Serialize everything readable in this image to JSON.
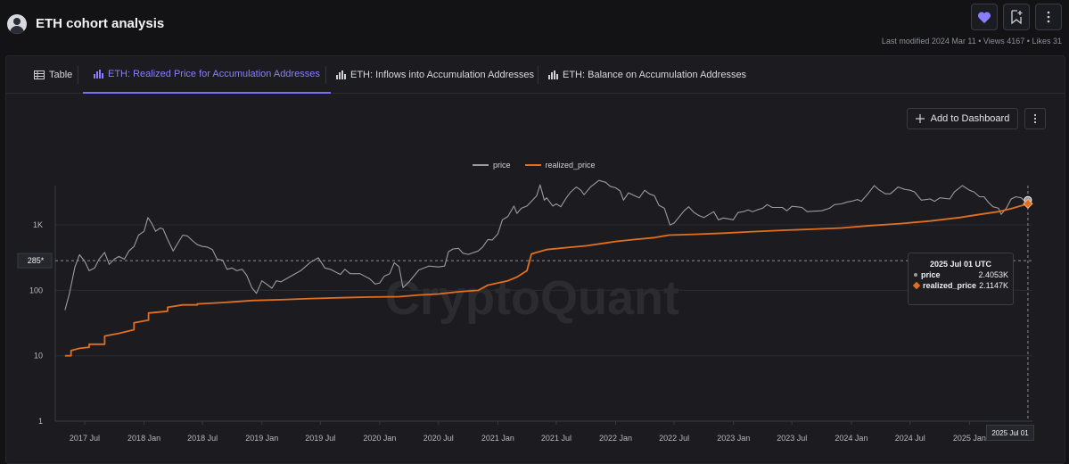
{
  "header": {
    "title": "ETH cohort analysis",
    "meta": {
      "last_modified_label": "Last modified 2024 Mar 11",
      "views_label": "Views 4167",
      "likes_label": "Likes 31",
      "separator": "•"
    }
  },
  "colors": {
    "accent": "#7a6cf5",
    "price": "#9a9aa2",
    "realized_price": "#e36e1e",
    "background": "#131316"
  },
  "tabs": [
    {
      "label": "Table",
      "icon": "table-icon",
      "active": false
    },
    {
      "label": "ETH: Realized Price for Accumulation Addresses",
      "icon": "bar-chart-icon",
      "active": true
    },
    {
      "label": "ETH: Inflows into Accumulation Addresses",
      "icon": "bar-chart-icon",
      "active": false
    },
    {
      "label": "ETH: Balance on Accumulation Addresses",
      "icon": "bar-chart-icon",
      "active": false
    }
  ],
  "toolbar": {
    "add_label": "Add to Dashboard"
  },
  "watermark": "CryptoQuant",
  "tooltip": {
    "title": "2025 Jul 01 UTC",
    "rows": [
      {
        "label": "price",
        "value": "2.4053K"
      },
      {
        "label": "realized_price",
        "value": "2.1147K"
      }
    ]
  },
  "crosshair": {
    "y_label": "285*",
    "y_value": 285,
    "x_label": "2025 Jul 01"
  },
  "chart_data": {
    "type": "line",
    "title": "",
    "xlabel": "",
    "ylabel": "",
    "y_scale": "log",
    "ylim": [
      1,
      4000
    ],
    "xlim": [
      "2017-04-01",
      "2025-07-15"
    ],
    "y_ticks": [
      {
        "value": 1,
        "label": "1"
      },
      {
        "value": 10,
        "label": "10"
      },
      {
        "value": 100,
        "label": "100"
      },
      {
        "value": 1000,
        "label": "1K"
      }
    ],
    "x_ticks": [
      {
        "date": "2017-07-01",
        "label": "2017 Jul"
      },
      {
        "date": "2018-01-01",
        "label": "2018 Jan"
      },
      {
        "date": "2018-07-01",
        "label": "2018 Jul"
      },
      {
        "date": "2019-01-01",
        "label": "2019 Jan"
      },
      {
        "date": "2019-07-01",
        "label": "2019 Jul"
      },
      {
        "date": "2020-01-01",
        "label": "2020 Jan"
      },
      {
        "date": "2020-07-01",
        "label": "2020 Jul"
      },
      {
        "date": "2021-01-01",
        "label": "2021 Jan"
      },
      {
        "date": "2021-07-01",
        "label": "2021 Jul"
      },
      {
        "date": "2022-01-01",
        "label": "2022 Jan"
      },
      {
        "date": "2022-07-01",
        "label": "2022 Jul"
      },
      {
        "date": "2023-01-01",
        "label": "2023 Jan"
      },
      {
        "date": "2023-07-01",
        "label": "2023 Jul"
      },
      {
        "date": "2024-01-01",
        "label": "2024 Jan"
      },
      {
        "date": "2024-07-01",
        "label": "2024 Jul"
      },
      {
        "date": "2025-01-01",
        "label": "2025 Jan"
      }
    ],
    "grid": true,
    "legend": "top-center",
    "series": [
      {
        "name": "price",
        "color": "#9a9aa2",
        "points": [
          [
            "2017-05-01",
            50
          ],
          [
            "2017-05-15",
            90
          ],
          [
            "2017-06-01",
            230
          ],
          [
            "2017-06-15",
            350
          ],
          [
            "2017-07-01",
            280
          ],
          [
            "2017-07-15",
            200
          ],
          [
            "2017-08-01",
            220
          ],
          [
            "2017-08-15",
            300
          ],
          [
            "2017-09-01",
            380
          ],
          [
            "2017-09-15",
            250
          ],
          [
            "2017-10-01",
            300
          ],
          [
            "2017-10-15",
            330
          ],
          [
            "2017-11-01",
            300
          ],
          [
            "2017-11-15",
            400
          ],
          [
            "2017-12-01",
            470
          ],
          [
            "2017-12-15",
            700
          ],
          [
            "2018-01-01",
            800
          ],
          [
            "2018-01-13",
            1300
          ],
          [
            "2018-01-25",
            1050
          ],
          [
            "2018-02-06",
            800
          ],
          [
            "2018-02-20",
            900
          ],
          [
            "2018-03-01",
            870
          ],
          [
            "2018-03-15",
            600
          ],
          [
            "2018-04-01",
            400
          ],
          [
            "2018-04-15",
            520
          ],
          [
            "2018-05-01",
            700
          ],
          [
            "2018-05-15",
            680
          ],
          [
            "2018-06-01",
            570
          ],
          [
            "2018-06-15",
            500
          ],
          [
            "2018-07-01",
            470
          ],
          [
            "2018-07-15",
            460
          ],
          [
            "2018-08-01",
            420
          ],
          [
            "2018-08-15",
            300
          ],
          [
            "2018-09-01",
            290
          ],
          [
            "2018-09-15",
            210
          ],
          [
            "2018-10-01",
            220
          ],
          [
            "2018-10-15",
            200
          ],
          [
            "2018-11-01",
            210
          ],
          [
            "2018-11-15",
            170
          ],
          [
            "2018-12-01",
            110
          ],
          [
            "2018-12-15",
            90
          ],
          [
            "2019-01-01",
            140
          ],
          [
            "2019-01-15",
            125
          ],
          [
            "2019-02-01",
            108
          ],
          [
            "2019-02-15",
            140
          ],
          [
            "2019-03-01",
            135
          ],
          [
            "2019-04-01",
            165
          ],
          [
            "2019-05-01",
            200
          ],
          [
            "2019-06-01",
            270
          ],
          [
            "2019-06-25",
            315
          ],
          [
            "2019-07-15",
            220
          ],
          [
            "2019-08-01",
            210
          ],
          [
            "2019-09-01",
            175
          ],
          [
            "2019-09-15",
            210
          ],
          [
            "2019-10-01",
            180
          ],
          [
            "2019-11-01",
            180
          ],
          [
            "2019-12-01",
            150
          ],
          [
            "2019-12-18",
            125
          ],
          [
            "2020-01-01",
            130
          ],
          [
            "2020-01-15",
            165
          ],
          [
            "2020-02-01",
            180
          ],
          [
            "2020-02-15",
            265
          ],
          [
            "2020-03-01",
            230
          ],
          [
            "2020-03-13",
            110
          ],
          [
            "2020-04-01",
            135
          ],
          [
            "2020-05-01",
            205
          ],
          [
            "2020-06-01",
            235
          ],
          [
            "2020-07-01",
            228
          ],
          [
            "2020-07-20",
            235
          ],
          [
            "2020-08-01",
            390
          ],
          [
            "2020-08-15",
            430
          ],
          [
            "2020-09-01",
            440
          ],
          [
            "2020-09-15",
            370
          ],
          [
            "2020-10-01",
            355
          ],
          [
            "2020-11-01",
            400
          ],
          [
            "2020-11-15",
            460
          ],
          [
            "2020-12-01",
            600
          ],
          [
            "2020-12-15",
            590
          ],
          [
            "2021-01-01",
            730
          ],
          [
            "2021-01-15",
            1200
          ],
          [
            "2021-02-01",
            1350
          ],
          [
            "2021-02-20",
            1950
          ],
          [
            "2021-03-01",
            1500
          ],
          [
            "2021-03-15",
            1800
          ],
          [
            "2021-04-01",
            1950
          ],
          [
            "2021-04-15",
            2300
          ],
          [
            "2021-05-01",
            2800
          ],
          [
            "2021-05-12",
            4100
          ],
          [
            "2021-05-25",
            2400
          ],
          [
            "2021-06-01",
            2600
          ],
          [
            "2021-06-20",
            1950
          ],
          [
            "2021-07-01",
            2100
          ],
          [
            "2021-07-15",
            1900
          ],
          [
            "2021-08-01",
            2600
          ],
          [
            "2021-08-15",
            3200
          ],
          [
            "2021-09-01",
            3800
          ],
          [
            "2021-09-15",
            3400
          ],
          [
            "2021-09-25",
            2900
          ],
          [
            "2021-10-15",
            3800
          ],
          [
            "2021-11-10",
            4800
          ],
          [
            "2021-12-01",
            4500
          ],
          [
            "2021-12-15",
            3900
          ],
          [
            "2022-01-01",
            3700
          ],
          [
            "2022-01-15",
            3300
          ],
          [
            "2022-01-25",
            2400
          ],
          [
            "2022-02-10",
            3100
          ],
          [
            "2022-03-01",
            2800
          ],
          [
            "2022-03-15",
            2600
          ],
          [
            "2022-04-01",
            3400
          ],
          [
            "2022-04-15",
            3000
          ],
          [
            "2022-05-01",
            2800
          ],
          [
            "2022-05-15",
            2000
          ],
          [
            "2022-06-01",
            1800
          ],
          [
            "2022-06-18",
            1000
          ],
          [
            "2022-07-01",
            1070
          ],
          [
            "2022-07-15",
            1300
          ],
          [
            "2022-08-01",
            1650
          ],
          [
            "2022-08-15",
            1900
          ],
          [
            "2022-09-01",
            1550
          ],
          [
            "2022-09-15",
            1400
          ],
          [
            "2022-10-01",
            1300
          ],
          [
            "2022-11-01",
            1600
          ],
          [
            "2022-11-15",
            1200
          ],
          [
            "2022-12-01",
            1280
          ],
          [
            "2022-12-31",
            1200
          ],
          [
            "2023-01-15",
            1550
          ],
          [
            "2023-02-01",
            1600
          ],
          [
            "2023-02-15",
            1700
          ],
          [
            "2023-03-01",
            1600
          ],
          [
            "2023-03-15",
            1700
          ],
          [
            "2023-04-01",
            1800
          ],
          [
            "2023-04-15",
            2050
          ],
          [
            "2023-05-01",
            1850
          ],
          [
            "2023-06-01",
            1850
          ],
          [
            "2023-06-15",
            1650
          ],
          [
            "2023-07-01",
            1930
          ],
          [
            "2023-07-15",
            1900
          ],
          [
            "2023-08-01",
            1850
          ],
          [
            "2023-08-17",
            1600
          ],
          [
            "2023-09-01",
            1620
          ],
          [
            "2023-10-01",
            1650
          ],
          [
            "2023-10-25",
            1800
          ],
          [
            "2023-11-10",
            2050
          ],
          [
            "2023-12-01",
            2100
          ],
          [
            "2023-12-20",
            2250
          ],
          [
            "2024-01-01",
            2300
          ],
          [
            "2024-01-20",
            2450
          ],
          [
            "2024-02-01",
            2300
          ],
          [
            "2024-02-20",
            2950
          ],
          [
            "2024-03-12",
            4000
          ],
          [
            "2024-03-25",
            3500
          ],
          [
            "2024-04-15",
            3000
          ],
          [
            "2024-05-01",
            3000
          ],
          [
            "2024-05-25",
            3800
          ],
          [
            "2024-06-15",
            3500
          ],
          [
            "2024-07-01",
            3400
          ],
          [
            "2024-07-15",
            3200
          ],
          [
            "2024-08-05",
            2400
          ],
          [
            "2024-09-01",
            2500
          ],
          [
            "2024-09-15",
            2300
          ],
          [
            "2024-10-01",
            2600
          ],
          [
            "2024-11-01",
            2500
          ],
          [
            "2024-11-15",
            3200
          ],
          [
            "2024-12-10",
            4000
          ],
          [
            "2025-01-01",
            3400
          ],
          [
            "2025-01-15",
            3200
          ],
          [
            "2025-02-01",
            2700
          ],
          [
            "2025-02-15",
            2700
          ],
          [
            "2025-03-01",
            2200
          ],
          [
            "2025-03-15",
            1900
          ],
          [
            "2025-04-01",
            1800
          ],
          [
            "2025-04-09",
            1450
          ],
          [
            "2025-04-25",
            1800
          ],
          [
            "2025-05-10",
            2500
          ],
          [
            "2025-05-25",
            2700
          ],
          [
            "2025-06-10",
            2600
          ],
          [
            "2025-06-22",
            2300
          ],
          [
            "2025-07-01",
            2405
          ]
        ]
      },
      {
        "name": "realized_price",
        "color": "#e36e1e",
        "points": [
          [
            "2017-05-01",
            10
          ],
          [
            "2017-05-20",
            10
          ],
          [
            "2017-05-20",
            12
          ],
          [
            "2017-06-15",
            13
          ],
          [
            "2017-07-15",
            13.5
          ],
          [
            "2017-07-15",
            15
          ],
          [
            "2017-09-01",
            15
          ],
          [
            "2017-09-01",
            20
          ],
          [
            "2017-10-15",
            22
          ],
          [
            "2017-12-01",
            25
          ],
          [
            "2017-12-01",
            32
          ],
          [
            "2018-01-15",
            35
          ],
          [
            "2018-01-15",
            45
          ],
          [
            "2018-03-15",
            48
          ],
          [
            "2018-03-15",
            55
          ],
          [
            "2018-05-01",
            60
          ],
          [
            "2018-06-15",
            60
          ],
          [
            "2018-06-15",
            62
          ],
          [
            "2018-09-01",
            65
          ],
          [
            "2018-12-01",
            70
          ],
          [
            "2019-03-01",
            72
          ],
          [
            "2019-06-01",
            75
          ],
          [
            "2019-09-01",
            77
          ],
          [
            "2019-12-01",
            79
          ],
          [
            "2020-03-01",
            80
          ],
          [
            "2020-05-01",
            85
          ],
          [
            "2020-07-01",
            88
          ],
          [
            "2020-09-01",
            95
          ],
          [
            "2020-11-01",
            100
          ],
          [
            "2020-12-01",
            120
          ],
          [
            "2021-01-01",
            130
          ],
          [
            "2021-02-01",
            140
          ],
          [
            "2021-03-01",
            160
          ],
          [
            "2021-04-01",
            200
          ],
          [
            "2021-04-15",
            360
          ],
          [
            "2021-05-01",
            380
          ],
          [
            "2021-06-01",
            420
          ],
          [
            "2021-08-01",
            450
          ],
          [
            "2021-10-01",
            480
          ],
          [
            "2021-12-01",
            530
          ],
          [
            "2022-01-01",
            560
          ],
          [
            "2022-03-01",
            600
          ],
          [
            "2022-05-01",
            640
          ],
          [
            "2022-06-15",
            700
          ],
          [
            "2022-09-01",
            720
          ],
          [
            "2022-12-01",
            750
          ],
          [
            "2023-03-01",
            790
          ],
          [
            "2023-06-01",
            830
          ],
          [
            "2023-09-01",
            860
          ],
          [
            "2023-12-01",
            900
          ],
          [
            "2024-03-01",
            980
          ],
          [
            "2024-06-01",
            1050
          ],
          [
            "2024-09-01",
            1150
          ],
          [
            "2024-12-01",
            1300
          ],
          [
            "2025-02-01",
            1450
          ],
          [
            "2025-04-01",
            1600
          ],
          [
            "2025-05-15",
            1800
          ],
          [
            "2025-07-01",
            2115
          ]
        ]
      }
    ]
  }
}
